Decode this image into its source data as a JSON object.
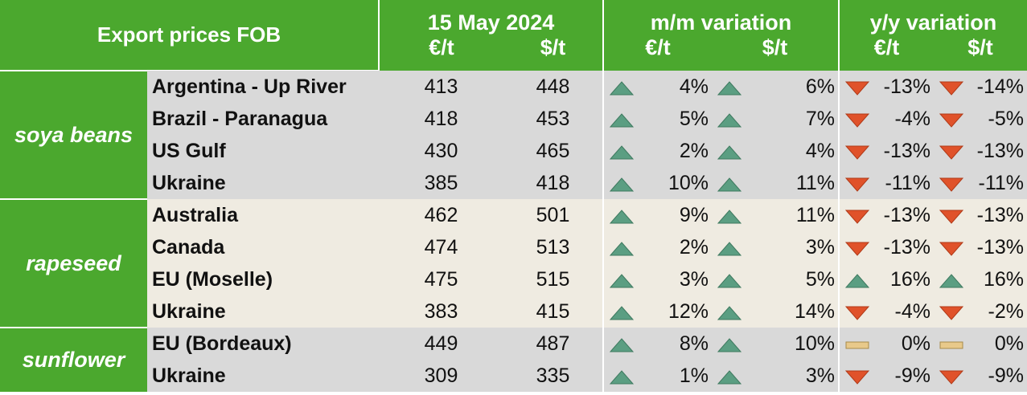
{
  "header": {
    "title": "Export prices FOB",
    "date_label": "15 May 2024",
    "mm_label": "m/m variation",
    "yy_label": "y/y variation",
    "unit_eur": "€/t",
    "unit_usd": "$/t"
  },
  "colors": {
    "header_green": "#4ba82e",
    "row_grey": "#d9d9d9",
    "row_beige": "#efebe1",
    "up_arrow": "#5b9e82",
    "down_arrow": "#e0522a",
    "flat_bar": "#e8c98a"
  },
  "groups": [
    {
      "name": "soya beans",
      "rows": [
        {
          "origin": "Argentina - Up River",
          "eur": "413",
          "usd": "448",
          "mm_eur": "4%",
          "mm_eur_dir": "up",
          "mm_usd": "6%",
          "mm_usd_dir": "up",
          "yy_eur": "-13%",
          "yy_eur_dir": "down",
          "yy_usd": "-14%",
          "yy_usd_dir": "down"
        },
        {
          "origin": "Brazil - Paranagua",
          "eur": "418",
          "usd": "453",
          "mm_eur": "5%",
          "mm_eur_dir": "up",
          "mm_usd": "7%",
          "mm_usd_dir": "up",
          "yy_eur": "-4%",
          "yy_eur_dir": "down",
          "yy_usd": "-5%",
          "yy_usd_dir": "down"
        },
        {
          "origin": "US Gulf",
          "eur": "430",
          "usd": "465",
          "mm_eur": "2%",
          "mm_eur_dir": "up",
          "mm_usd": "4%",
          "mm_usd_dir": "up",
          "yy_eur": "-13%",
          "yy_eur_dir": "down",
          "yy_usd": "-13%",
          "yy_usd_dir": "down"
        },
        {
          "origin": "Ukraine",
          "eur": "385",
          "usd": "418",
          "mm_eur": "10%",
          "mm_eur_dir": "up",
          "mm_usd": "11%",
          "mm_usd_dir": "up",
          "yy_eur": "-11%",
          "yy_eur_dir": "down",
          "yy_usd": "-11%",
          "yy_usd_dir": "down"
        }
      ]
    },
    {
      "name": "rapeseed",
      "rows": [
        {
          "origin": "Australia",
          "eur": "462",
          "usd": "501",
          "mm_eur": "9%",
          "mm_eur_dir": "up",
          "mm_usd": "11%",
          "mm_usd_dir": "up",
          "yy_eur": "-13%",
          "yy_eur_dir": "down",
          "yy_usd": "-13%",
          "yy_usd_dir": "down"
        },
        {
          "origin": "Canada",
          "eur": "474",
          "usd": "513",
          "mm_eur": "2%",
          "mm_eur_dir": "up",
          "mm_usd": "3%",
          "mm_usd_dir": "up",
          "yy_eur": "-13%",
          "yy_eur_dir": "down",
          "yy_usd": "-13%",
          "yy_usd_dir": "down"
        },
        {
          "origin": "EU (Moselle)",
          "eur": "475",
          "usd": "515",
          "mm_eur": "3%",
          "mm_eur_dir": "up",
          "mm_usd": "5%",
          "mm_usd_dir": "up",
          "yy_eur": "16%",
          "yy_eur_dir": "up",
          "yy_usd": "16%",
          "yy_usd_dir": "up"
        },
        {
          "origin": "Ukraine",
          "eur": "383",
          "usd": "415",
          "mm_eur": "12%",
          "mm_eur_dir": "up",
          "mm_usd": "14%",
          "mm_usd_dir": "up",
          "yy_eur": "-4%",
          "yy_eur_dir": "down",
          "yy_usd": "-2%",
          "yy_usd_dir": "down"
        }
      ]
    },
    {
      "name": "sunflower",
      "rows": [
        {
          "origin": "EU (Bordeaux)",
          "eur": "449",
          "usd": "487",
          "mm_eur": "8%",
          "mm_eur_dir": "up",
          "mm_usd": "10%",
          "mm_usd_dir": "up",
          "yy_eur": "0%",
          "yy_eur_dir": "flat",
          "yy_usd": "0%",
          "yy_usd_dir": "flat"
        },
        {
          "origin": "Ukraine",
          "eur": "309",
          "usd": "335",
          "mm_eur": "1%",
          "mm_eur_dir": "up",
          "mm_usd": "3%",
          "mm_usd_dir": "up",
          "yy_eur": "-9%",
          "yy_eur_dir": "down",
          "yy_usd": "-9%",
          "yy_usd_dir": "down"
        }
      ]
    }
  ]
}
